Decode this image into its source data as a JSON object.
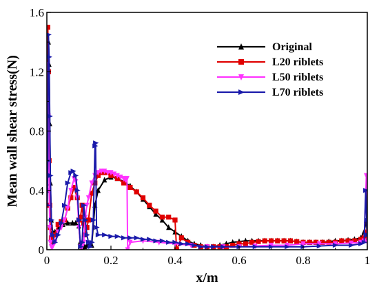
{
  "chart_data": {
    "type": "line",
    "xlabel": "x/m",
    "ylabel": "Mean wall shear stress(N)",
    "xlim": [
      0,
      1
    ],
    "ylim": [
      0,
      1.6
    ],
    "xticks": [
      0,
      0.2,
      0.4,
      0.6,
      0.8,
      1
    ],
    "xtick_labels": [
      "0",
      "0.2",
      "0.4",
      "0.6",
      "0.8",
      "1"
    ],
    "yticks": [
      0,
      0.4,
      0.8,
      1.2,
      1.6
    ],
    "ytick_labels": [
      "0",
      "0.4",
      "0.8",
      "1.2",
      "1.6"
    ],
    "legend_position": "top-right",
    "series": [
      {
        "name": "Original",
        "color": "#000000",
        "marker": "triangle-up",
        "x": [
          0.001,
          0.003,
          0.005,
          0.007,
          0.009,
          0.011,
          0.014,
          0.018,
          0.025,
          0.035,
          0.05,
          0.065,
          0.08,
          0.09,
          0.1,
          0.104,
          0.108,
          0.112,
          0.118,
          0.125,
          0.132,
          0.14,
          0.15,
          0.16,
          0.18,
          0.2,
          0.22,
          0.24,
          0.26,
          0.28,
          0.3,
          0.32,
          0.34,
          0.36,
          0.38,
          0.4,
          0.42,
          0.44,
          0.46,
          0.48,
          0.5,
          0.52,
          0.54,
          0.56,
          0.58,
          0.6,
          0.62,
          0.64,
          0.66,
          0.68,
          0.7,
          0.72,
          0.74,
          0.76,
          0.78,
          0.8,
          0.82,
          0.84,
          0.86,
          0.88,
          0.9,
          0.92,
          0.94,
          0.96,
          0.98,
          0.99,
          0.997,
          1.0
        ],
        "y": [
          0.4,
          0.95,
          1.4,
          1.25,
          0.85,
          0.45,
          0.2,
          0.12,
          0.12,
          0.15,
          0.17,
          0.18,
          0.18,
          0.18,
          0.16,
          0.05,
          0.01,
          0.01,
          0.02,
          0.03,
          0.03,
          0.03,
          0.3,
          0.4,
          0.47,
          0.49,
          0.48,
          0.46,
          0.43,
          0.39,
          0.34,
          0.29,
          0.24,
          0.2,
          0.15,
          0.12,
          0.09,
          0.06,
          0.04,
          0.03,
          0.02,
          0.02,
          0.03,
          0.04,
          0.05,
          0.055,
          0.06,
          0.06,
          0.06,
          0.06,
          0.06,
          0.06,
          0.06,
          0.06,
          0.055,
          0.05,
          0.05,
          0.05,
          0.05,
          0.055,
          0.06,
          0.06,
          0.065,
          0.07,
          0.08,
          0.12,
          0.2,
          0.08
        ]
      },
      {
        "name": "L20 riblets",
        "color": "#e00000",
        "marker": "square",
        "x": [
          0.001,
          0.003,
          0.005,
          0.007,
          0.009,
          0.011,
          0.014,
          0.018,
          0.025,
          0.035,
          0.045,
          0.055,
          0.065,
          0.075,
          0.085,
          0.095,
          0.1,
          0.105,
          0.11,
          0.115,
          0.12,
          0.125,
          0.13,
          0.14,
          0.15,
          0.16,
          0.17,
          0.18,
          0.2,
          0.22,
          0.24,
          0.26,
          0.28,
          0.3,
          0.32,
          0.34,
          0.36,
          0.38,
          0.4,
          0.405,
          0.42,
          0.44,
          0.46,
          0.48,
          0.5,
          0.52,
          0.54,
          0.56,
          0.58,
          0.6,
          0.62,
          0.64,
          0.66,
          0.68,
          0.7,
          0.72,
          0.74,
          0.76,
          0.78,
          0.8,
          0.82,
          0.84,
          0.86,
          0.88,
          0.9,
          0.92,
          0.94,
          0.96,
          0.98,
          0.99,
          0.997,
          1.0
        ],
        "y": [
          0.6,
          1.5,
          1.2,
          0.6,
          0.3,
          0.15,
          0.08,
          0.05,
          0.1,
          0.17,
          0.19,
          0.2,
          0.28,
          0.35,
          0.42,
          0.35,
          0.2,
          0.22,
          0.3,
          0.18,
          0.1,
          0.15,
          0.2,
          0.38,
          0.45,
          0.5,
          0.52,
          0.52,
          0.5,
          0.48,
          0.45,
          0.42,
          0.39,
          0.35,
          0.3,
          0.26,
          0.22,
          0.22,
          0.2,
          0.0,
          0.08,
          0.05,
          0.03,
          0.02,
          0.02,
          0.02,
          0.02,
          0.02,
          0.03,
          0.04,
          0.04,
          0.05,
          0.055,
          0.06,
          0.06,
          0.06,
          0.06,
          0.06,
          0.055,
          0.05,
          0.05,
          0.05,
          0.05,
          0.05,
          0.05,
          0.06,
          0.06,
          0.06,
          0.07,
          0.08,
          0.12,
          0.08
        ]
      },
      {
        "name": "L50 riblets",
        "color": "#ff33ff",
        "marker": "triangle-down",
        "x": [
          0.001,
          0.003,
          0.005,
          0.007,
          0.009,
          0.011,
          0.014,
          0.018,
          0.025,
          0.035,
          0.045,
          0.055,
          0.065,
          0.075,
          0.085,
          0.09,
          0.095,
          0.1,
          0.105,
          0.11,
          0.115,
          0.12,
          0.125,
          0.13,
          0.14,
          0.15,
          0.16,
          0.17,
          0.18,
          0.19,
          0.2,
          0.21,
          0.22,
          0.23,
          0.24,
          0.245,
          0.25,
          0.252,
          0.26,
          0.3,
          0.35,
          0.4,
          0.45,
          0.5,
          0.55,
          0.6,
          0.65,
          0.7,
          0.75,
          0.8,
          0.85,
          0.9,
          0.95,
          0.98,
          0.99,
          0.997,
          1.0
        ],
        "y": [
          0.5,
          1.25,
          0.9,
          0.4,
          0.15,
          0.05,
          0.02,
          0.02,
          0.05,
          0.12,
          0.15,
          0.2,
          0.28,
          0.4,
          0.48,
          0.46,
          0.35,
          0.15,
          0.02,
          0.02,
          0.05,
          0.22,
          0.3,
          0.35,
          0.45,
          0.5,
          0.52,
          0.53,
          0.53,
          0.52,
          0.52,
          0.51,
          0.5,
          0.49,
          0.48,
          0.47,
          0.48,
          0.0,
          0.05,
          0.06,
          0.05,
          0.04,
          0.03,
          0.02,
          0.02,
          0.02,
          0.025,
          0.03,
          0.03,
          0.04,
          0.04,
          0.04,
          0.045,
          0.05,
          0.06,
          0.5,
          0.05
        ]
      },
      {
        "name": "L70 riblets",
        "color": "#1a1aaa",
        "marker": "triangle-right",
        "x": [
          0.001,
          0.003,
          0.005,
          0.007,
          0.009,
          0.011,
          0.014,
          0.018,
          0.025,
          0.035,
          0.045,
          0.055,
          0.065,
          0.075,
          0.082,
          0.09,
          0.095,
          0.1,
          0.105,
          0.11,
          0.115,
          0.12,
          0.125,
          0.13,
          0.135,
          0.14,
          0.145,
          0.15,
          0.152,
          0.155,
          0.16,
          0.18,
          0.2,
          0.22,
          0.24,
          0.26,
          0.28,
          0.3,
          0.32,
          0.34,
          0.36,
          0.38,
          0.4,
          0.42,
          0.44,
          0.46,
          0.48,
          0.5,
          0.52,
          0.55,
          0.6,
          0.65,
          0.7,
          0.75,
          0.8,
          0.85,
          0.9,
          0.95,
          0.98,
          0.99,
          0.995,
          0.998,
          1.0
        ],
        "y": [
          0.3,
          0.6,
          1.45,
          1.3,
          0.9,
          0.5,
          0.2,
          0.1,
          0.05,
          0.1,
          0.18,
          0.3,
          0.45,
          0.52,
          0.53,
          0.5,
          0.4,
          0.2,
          0.02,
          0.05,
          0.3,
          0.2,
          0.1,
          0.05,
          0.02,
          0.05,
          0.2,
          0.7,
          0.72,
          0.15,
          0.1,
          0.1,
          0.09,
          0.09,
          0.08,
          0.08,
          0.08,
          0.07,
          0.07,
          0.06,
          0.06,
          0.05,
          0.05,
          0.04,
          0.04,
          0.03,
          0.02,
          0.02,
          0.02,
          0.02,
          0.02,
          0.02,
          0.02,
          0.02,
          0.02,
          0.025,
          0.03,
          0.03,
          0.04,
          0.05,
          0.4,
          0.2,
          0.1
        ]
      }
    ]
  }
}
